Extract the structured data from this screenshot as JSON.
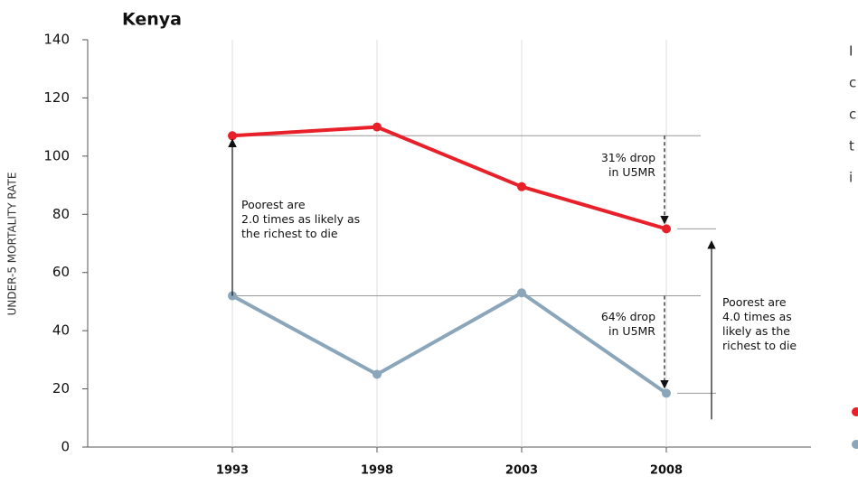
{
  "chart_data": {
    "type": "line",
    "title": "Kenya",
    "y_label": "UNDER-5 MORTALITY RATE",
    "categories": [
      "1993",
      "1998",
      "2003",
      "2008"
    ],
    "series": [
      {
        "color": "#e8202a",
        "values": [
          107,
          110,
          89.5,
          75
        ]
      },
      {
        "color": "#8ba6ba",
        "values": [
          52,
          25,
          53,
          18.5
        ]
      }
    ],
    "ylim": [
      0,
      140
    ],
    "yticks": [
      0,
      20,
      40,
      60,
      80,
      100,
      120,
      140
    ],
    "annotations": {
      "gap_1993": [
        "Poorest are",
        "2.0 times as likely as",
        "the richest to die"
      ],
      "drop_top": [
        "31% drop",
        "in U5MR"
      ],
      "drop_bottom": [
        "64% drop",
        "in U5MR"
      ],
      "gap_2008": [
        "Poorest are",
        "4.0 times as",
        "likely as the",
        "richest to die"
      ]
    },
    "side_text": [
      "I",
      "c",
      "c",
      "t",
      "i"
    ]
  }
}
